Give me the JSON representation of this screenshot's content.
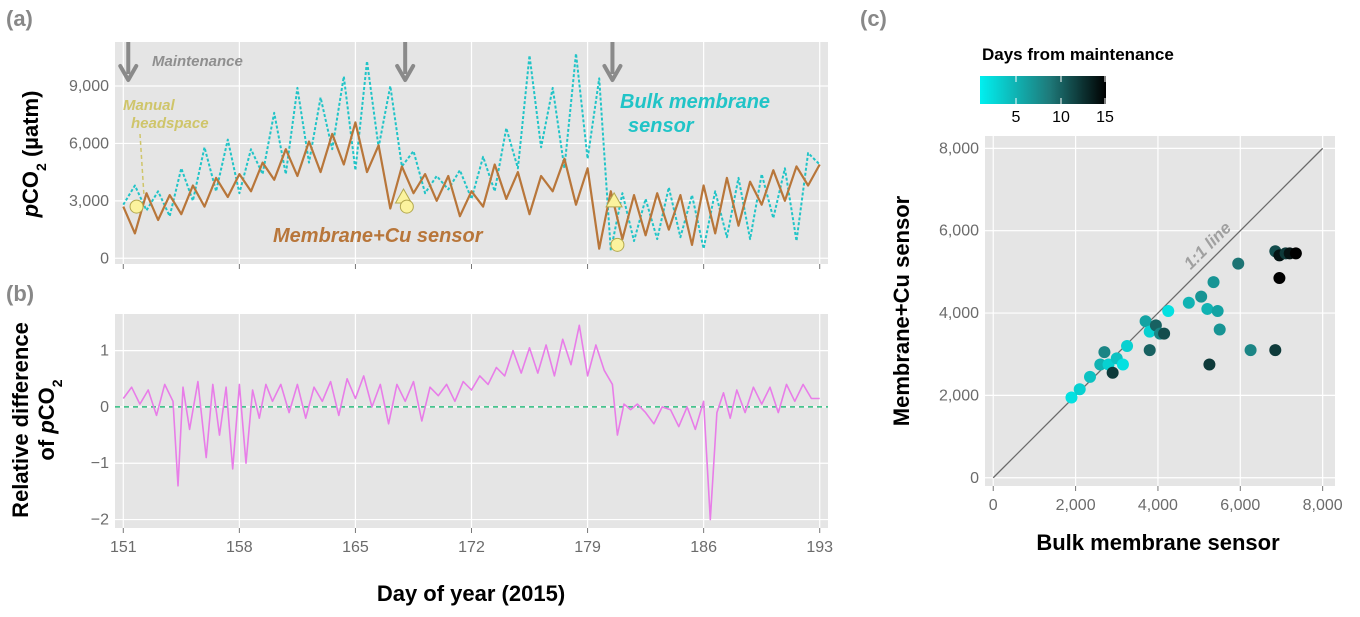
{
  "panel_labels": [
    "(a)",
    "(b)",
    "(c)"
  ],
  "colors": {
    "panel_bg": "#e5e5e5",
    "grid": "#ffffff",
    "bulk_sensor": "#21c4c7",
    "cu_sensor": "#b8763a",
    "relative_diff": "#e87de8",
    "zero_line": "#2fbf80",
    "arrow": "#8a8a8a",
    "marker_fill": "#fbf39e",
    "marker_stroke": "#b3a84e",
    "annotation_manual": "#cfc56a",
    "colorbar_low": "#00f0f0",
    "colorbar_mid": "#1e7a7a",
    "colorbar_high": "#000000"
  },
  "chart_data": [
    {
      "id": "a",
      "type": "line",
      "panel_label": "(a)",
      "ylabel_prefix": "p",
      "ylabel_main": "CO",
      "ylabel_sub": "2",
      "ylabel_unit": " (µatm)",
      "xlim": [
        150.5,
        193.5
      ],
      "ylim": [
        -300,
        11300
      ],
      "xticks": [
        151,
        158,
        165,
        172,
        179,
        186,
        193
      ],
      "yticks": [
        0,
        3000,
        6000,
        9000
      ],
      "ytick_labels": [
        "0",
        "3,000",
        "6,000",
        "9,000"
      ],
      "series": [
        {
          "name": "Bulk membrane sensor",
          "style": "dotted",
          "color": "#21c4c7",
          "x": [
            151.0,
            151.7,
            152.4,
            153.1,
            153.8,
            154.5,
            155.2,
            155.9,
            156.6,
            157.3,
            158.0,
            158.7,
            159.4,
            160.1,
            160.8,
            161.5,
            162.2,
            162.9,
            163.6,
            164.3,
            165.0,
            165.7,
            166.4,
            167.1,
            167.8,
            168.5,
            169.2,
            169.9,
            170.6,
            171.3,
            172.0,
            172.7,
            173.4,
            174.1,
            174.8,
            175.5,
            176.2,
            176.9,
            177.6,
            178.3,
            179.0,
            179.7,
            180.4,
            181.1,
            181.8,
            182.5,
            183.2,
            183.9,
            184.6,
            185.3,
            186.0,
            186.7,
            187.4,
            188.1,
            188.8,
            189.5,
            190.2,
            190.9,
            191.6,
            192.3,
            193.0
          ],
          "y": [
            2800,
            3800,
            2500,
            3500,
            2200,
            4700,
            3000,
            5800,
            3500,
            6200,
            3400,
            5700,
            4400,
            7600,
            4400,
            8900,
            5000,
            8400,
            5700,
            9500,
            4600,
            10300,
            5800,
            9000,
            4800,
            5600,
            3400,
            4300,
            3600,
            4600,
            3100,
            5300,
            3500,
            6800,
            4700,
            10600,
            5800,
            8900,
            4700,
            10700,
            5200,
            9400,
            400,
            3400,
            900,
            3100,
            1000,
            3700,
            1100,
            3300,
            500,
            3500,
            1100,
            4200,
            1000,
            4400,
            2100,
            4700,
            900,
            5500,
            4900
          ]
        },
        {
          "name": "Membrane+Cu sensor",
          "style": "solid",
          "color": "#b8763a",
          "x": [
            151.0,
            151.7,
            152.4,
            153.1,
            153.8,
            154.5,
            155.2,
            155.9,
            156.6,
            157.3,
            158.0,
            158.7,
            159.4,
            160.1,
            160.8,
            161.5,
            162.2,
            162.9,
            163.6,
            164.3,
            165.0,
            165.7,
            166.4,
            167.1,
            167.8,
            168.5,
            169.2,
            169.9,
            170.6,
            171.3,
            172.0,
            172.7,
            173.4,
            174.1,
            174.8,
            175.5,
            176.2,
            176.9,
            177.6,
            178.3,
            179.0,
            179.7,
            180.4,
            181.1,
            181.8,
            182.5,
            183.2,
            183.9,
            184.6,
            185.3,
            186.0,
            186.7,
            187.4,
            188.1,
            188.8,
            189.5,
            190.2,
            190.9,
            191.6,
            192.3,
            193.0
          ],
          "y": [
            2700,
            1300,
            3400,
            2000,
            3300,
            2300,
            3800,
            2700,
            4200,
            3200,
            4400,
            3500,
            5000,
            4100,
            5700,
            4300,
            6100,
            4500,
            6500,
            4900,
            7100,
            4500,
            5900,
            2600,
            4800,
            3400,
            4400,
            3000,
            4300,
            2200,
            3500,
            2700,
            4900,
            3100,
            4500,
            2300,
            4300,
            3500,
            5200,
            2800,
            4700,
            500,
            3500,
            1000,
            3300,
            1200,
            3400,
            1500,
            3300,
            700,
            3800,
            1300,
            4200,
            1700,
            4000,
            2800,
            4600,
            3000,
            4800,
            3800,
            4900
          ]
        }
      ],
      "maintenance_days": [
        151.3,
        168.0,
        180.5
      ],
      "manual_headspace": {
        "circles": [
          [
            151.8,
            2700
          ],
          [
            168.1,
            2700
          ],
          [
            180.8,
            700
          ]
        ],
        "triangles": [
          [
            167.9,
            3200
          ],
          [
            180.6,
            3000
          ]
        ]
      },
      "annotations": {
        "maintenance": "Maintenance",
        "manual_line1": "Manual",
        "manual_line2": "headspace",
        "bulk_line1": "Bulk membrane",
        "bulk_line2": "sensor",
        "cu": "Membrane+Cu sensor"
      }
    },
    {
      "id": "b",
      "type": "line",
      "panel_label": "(b)",
      "ylabel_line1": "Relative difference",
      "ylabel_line2_prefix": "of ",
      "ylabel_line2_p": "p",
      "ylabel_line2_main": "CO",
      "ylabel_line2_sub": "2",
      "xlabel": "Day of year (2015)",
      "xlim": [
        150.5,
        193.5
      ],
      "ylim": [
        -2.15,
        1.65
      ],
      "xticks": [
        151,
        158,
        165,
        172,
        179,
        186,
        193
      ],
      "yticks": [
        -2,
        -1,
        0,
        1
      ],
      "ytick_labels": [
        "−2",
        "−1",
        "0",
        "1"
      ],
      "series": [
        {
          "name": "Relative difference",
          "color": "#e87de8",
          "x": [
            151.0,
            151.5,
            152.0,
            152.5,
            153.0,
            153.5,
            154.0,
            154.3,
            154.6,
            155.0,
            155.5,
            156.0,
            156.4,
            156.8,
            157.2,
            157.6,
            158.0,
            158.4,
            158.8,
            159.2,
            159.6,
            160.0,
            160.5,
            161.0,
            161.5,
            162.0,
            162.5,
            163.0,
            163.5,
            164.0,
            164.5,
            165.0,
            165.5,
            166.0,
            166.5,
            167.0,
            167.5,
            168.0,
            168.5,
            169.0,
            169.5,
            170.0,
            170.5,
            171.0,
            171.5,
            172.0,
            172.5,
            173.0,
            173.5,
            174.0,
            174.5,
            175.0,
            175.5,
            176.0,
            176.5,
            177.0,
            177.5,
            178.0,
            178.5,
            179.0,
            179.5,
            180.0,
            180.5,
            180.8,
            181.2,
            181.6,
            182.0,
            182.5,
            183.0,
            183.5,
            184.0,
            184.5,
            185.0,
            185.5,
            186.0,
            186.4,
            186.8,
            187.2,
            187.6,
            188.0,
            188.5,
            189.0,
            189.5,
            190.0,
            190.5,
            191.0,
            191.5,
            192.0,
            192.5,
            193.0
          ],
          "y": [
            0.15,
            0.35,
            0.05,
            0.3,
            -0.15,
            0.4,
            0.1,
            -1.4,
            0.35,
            -0.4,
            0.45,
            -0.9,
            0.4,
            -0.5,
            0.35,
            -1.1,
            0.4,
            -1.0,
            0.3,
            -0.2,
            0.4,
            0.1,
            0.4,
            -0.1,
            0.4,
            -0.2,
            0.35,
            0.1,
            0.45,
            -0.15,
            0.5,
            0.15,
            0.55,
            0.0,
            0.4,
            -0.3,
            0.4,
            0.1,
            0.45,
            -0.25,
            0.35,
            0.2,
            0.4,
            0.1,
            0.45,
            0.3,
            0.55,
            0.4,
            0.7,
            0.55,
            1.0,
            0.6,
            1.05,
            0.6,
            1.1,
            0.55,
            1.2,
            0.75,
            1.45,
            0.55,
            1.1,
            0.65,
            0.4,
            -0.5,
            0.05,
            -0.05,
            0.05,
            -0.1,
            -0.3,
            0.0,
            -0.05,
            -0.35,
            0.0,
            -0.4,
            0.1,
            -2.0,
            -0.1,
            0.25,
            -0.2,
            0.3,
            -0.1,
            0.35,
            0.05,
            0.35,
            -0.1,
            0.4,
            0.1,
            0.4,
            0.15,
            0.15
          ]
        }
      ],
      "zero_line": 0
    },
    {
      "id": "c",
      "type": "scatter",
      "panel_label": "(c)",
      "xlabel": "Bulk membrane sensor",
      "ylabel": "Membrane+Cu sensor",
      "xlim": [
        -200,
        8300
      ],
      "ylim": [
        -200,
        8300
      ],
      "xticks": [
        0,
        2000,
        4000,
        6000,
        8000
      ],
      "yticks": [
        0,
        2000,
        4000,
        6000,
        8000
      ],
      "tick_labels": [
        "0",
        "2,000",
        "4,000",
        "6,000",
        "8,000"
      ],
      "reference_line_label": "1:1 line",
      "colorbar": {
        "title": "Days from maintenance",
        "range": [
          1,
          15
        ],
        "ticks": [
          5,
          10,
          15
        ],
        "tick_labels": [
          "5",
          "10",
          "15"
        ]
      },
      "points": [
        {
          "x": 1900,
          "y": 1950,
          "days": 2
        },
        {
          "x": 2100,
          "y": 2150,
          "days": 3
        },
        {
          "x": 2350,
          "y": 2450,
          "days": 4
        },
        {
          "x": 2600,
          "y": 2750,
          "days": 5
        },
        {
          "x": 2700,
          "y": 3050,
          "days": 8
        },
        {
          "x": 2800,
          "y": 2750,
          "days": 3
        },
        {
          "x": 2900,
          "y": 2550,
          "days": 12
        },
        {
          "x": 3000,
          "y": 2900,
          "days": 4
        },
        {
          "x": 3150,
          "y": 2750,
          "days": 2
        },
        {
          "x": 3250,
          "y": 3200,
          "days": 3
        },
        {
          "x": 3700,
          "y": 3800,
          "days": 6
        },
        {
          "x": 3800,
          "y": 3100,
          "days": 10
        },
        {
          "x": 3800,
          "y": 3550,
          "days": 3
        },
        {
          "x": 3950,
          "y": 3700,
          "days": 10
        },
        {
          "x": 4050,
          "y": 3500,
          "days": 8
        },
        {
          "x": 4150,
          "y": 3500,
          "days": 11
        },
        {
          "x": 4250,
          "y": 4050,
          "days": 2
        },
        {
          "x": 4750,
          "y": 4250,
          "days": 5
        },
        {
          "x": 5050,
          "y": 4400,
          "days": 7
        },
        {
          "x": 5200,
          "y": 4100,
          "days": 5
        },
        {
          "x": 5250,
          "y": 2750,
          "days": 12
        },
        {
          "x": 5350,
          "y": 4750,
          "days": 7
        },
        {
          "x": 5450,
          "y": 4050,
          "days": 6
        },
        {
          "x": 5500,
          "y": 3600,
          "days": 7
        },
        {
          "x": 5950,
          "y": 5200,
          "days": 9
        },
        {
          "x": 6250,
          "y": 3100,
          "days": 8
        },
        {
          "x": 6850,
          "y": 5500,
          "days": 11
        },
        {
          "x": 6850,
          "y": 3100,
          "days": 12
        },
        {
          "x": 6950,
          "y": 5400,
          "days": 14
        },
        {
          "x": 6950,
          "y": 4850,
          "days": 15
        },
        {
          "x": 7100,
          "y": 5450,
          "days": 12
        },
        {
          "x": 7200,
          "y": 5450,
          "days": 14
        },
        {
          "x": 7350,
          "y": 5450,
          "days": 15
        }
      ]
    }
  ]
}
